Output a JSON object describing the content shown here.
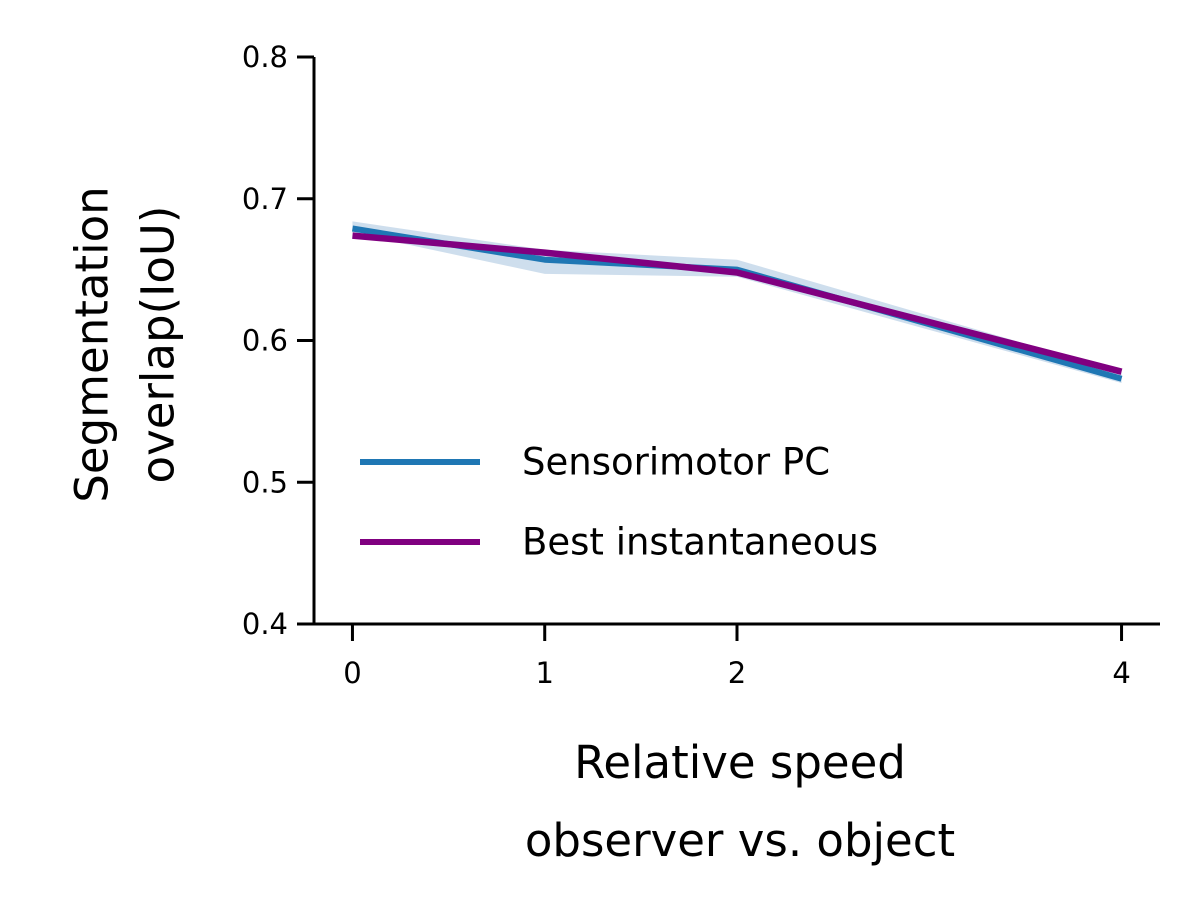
{
  "chart_data": {
    "type": "line",
    "xlabel": [
      "Relative speed",
      "observer vs. object"
    ],
    "ylabel": [
      "Segmentation",
      "overlap(IoU)"
    ],
    "xlim": [
      -0.2,
      4.2
    ],
    "ylim": [
      0.4,
      0.8
    ],
    "x_ticks": [
      0,
      1,
      2,
      4
    ],
    "x_tick_labels": [
      "0",
      "1",
      "2",
      "4"
    ],
    "y_ticks": [
      0.4,
      0.5,
      0.6,
      0.7,
      0.8
    ],
    "y_tick_labels": [
      "0.4",
      "0.5",
      "0.6",
      "0.7",
      "0.8"
    ],
    "grid": false,
    "legend_position": "lower-left",
    "x": [
      0,
      1,
      2,
      4
    ],
    "series": [
      {
        "name": "Sensorimotor PC",
        "color": "#1f77b4",
        "values": [
          0.679,
          0.657,
          0.65,
          0.573
        ],
        "band_lower": [
          0.676,
          0.647,
          0.645,
          0.57
        ],
        "band_upper": [
          0.684,
          0.664,
          0.657,
          0.578
        ],
        "band_color": "#b3cde3"
      },
      {
        "name": "Best instantaneous",
        "color": "#800080",
        "values": [
          0.674,
          0.662,
          0.648,
          0.578
        ]
      }
    ]
  }
}
